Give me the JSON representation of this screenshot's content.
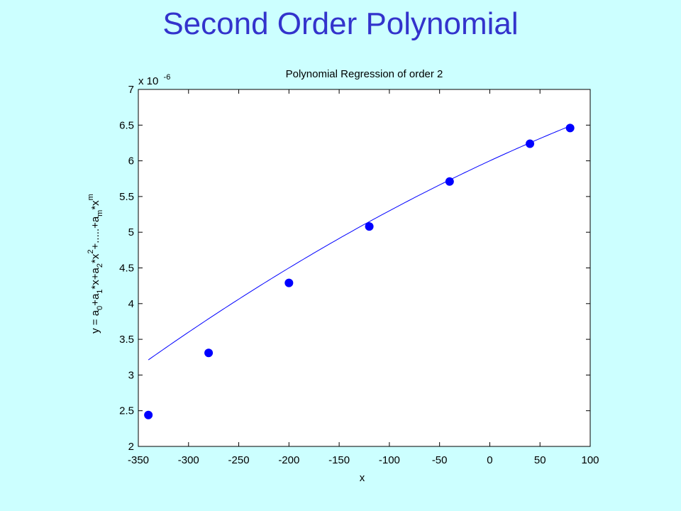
{
  "slide": {
    "title": "Second Order Polynomial"
  },
  "chart_data": {
    "type": "scatter",
    "title": "Polynomial Regression of order 2",
    "xlabel": "x",
    "ylabel_parts": [
      "y = a",
      "0",
      "+a",
      "1",
      "*x+a",
      "2",
      "*x",
      "2",
      "+.....+a",
      "m",
      "*x",
      "m"
    ],
    "y_multiplier": {
      "base": "x 10",
      "exponent": "-6"
    },
    "xlim": [
      -350,
      100
    ],
    "ylim": [
      2,
      7
    ],
    "x_ticks": [
      -350,
      -300,
      -250,
      -200,
      -150,
      -100,
      -50,
      0,
      50,
      100
    ],
    "y_ticks": [
      2,
      2.5,
      3,
      3.5,
      4,
      4.5,
      5,
      5.5,
      6,
      6.5,
      7
    ],
    "series": [
      {
        "kind": "points",
        "x": [
          -340,
          -280,
          -200,
          -120,
          -40,
          40,
          80
        ],
        "y": [
          2.44,
          3.31,
          4.29,
          5.08,
          5.71,
          6.24,
          6.46
        ]
      },
      {
        "kind": "fitted-curve",
        "coefficients": {
          "a0": 6.0,
          "a1": 0.0065,
          "a2": -5e-06
        }
      }
    ],
    "colors": {
      "points": "#0000ff",
      "curve": "#0000ff",
      "frame": "#000000",
      "plot_background": "#ffffff"
    },
    "grid": false
  }
}
